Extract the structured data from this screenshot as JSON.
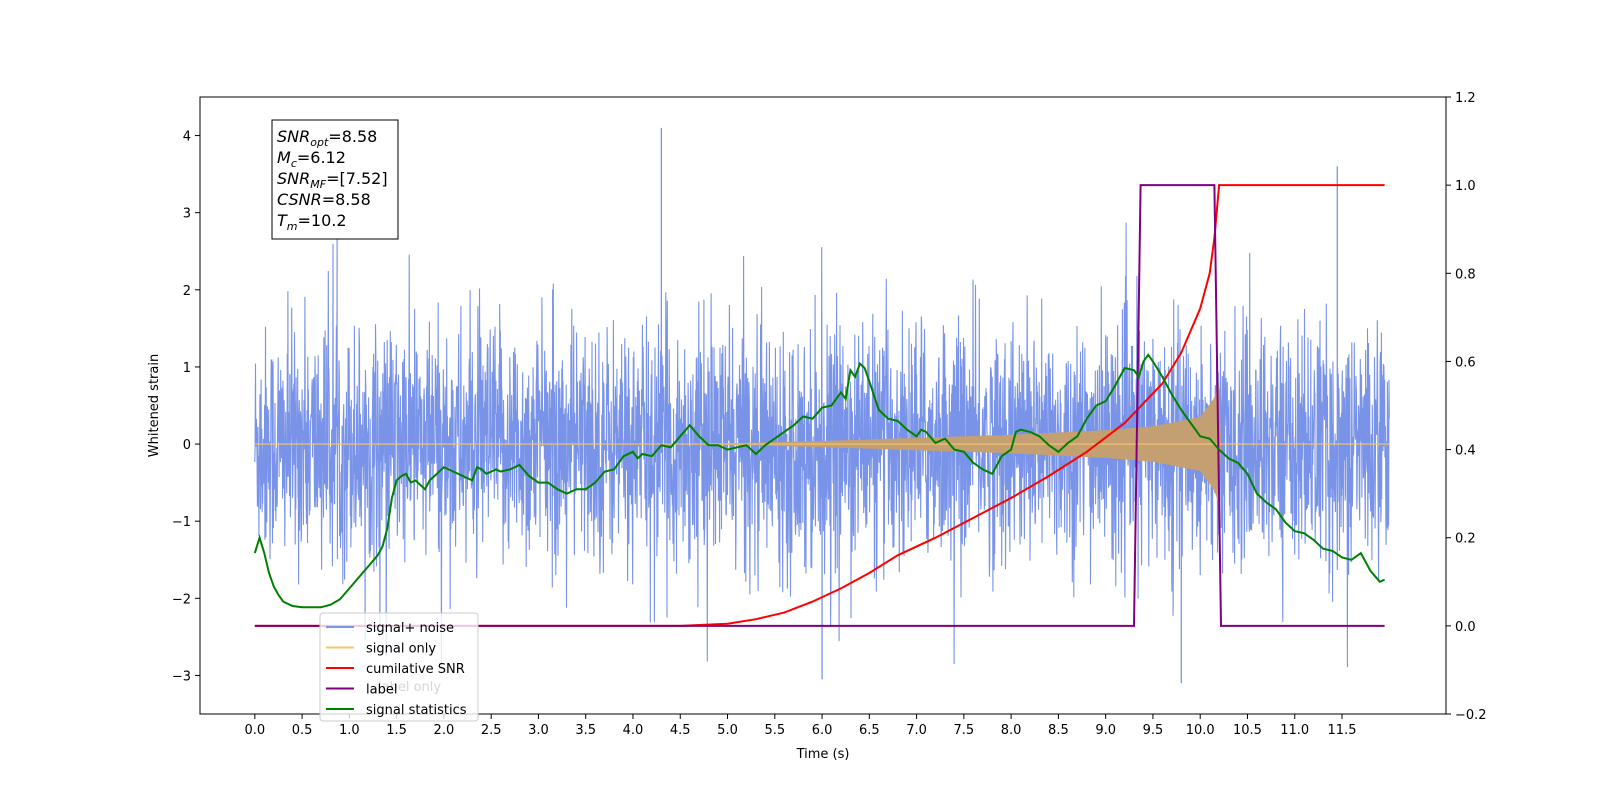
{
  "chart_data": {
    "type": "line",
    "title": "",
    "xlabel": "Time (s)",
    "ylabel": "Whitened strain",
    "y2label": "",
    "xlim": [
      -0.58,
      12.6
    ],
    "ylim": [
      -3.5,
      4.5
    ],
    "y2lim": [
      -0.2,
      1.2
    ],
    "xticks": [
      0.0,
      0.5,
      1.0,
      1.5,
      2.0,
      2.5,
      3.0,
      3.5,
      4.0,
      4.5,
      5.0,
      5.5,
      6.0,
      6.5,
      7.0,
      7.5,
      8.0,
      8.5,
      9.0,
      9.5,
      10.0,
      10.5,
      11.0,
      11.5
    ],
    "xtick_labels": [
      "0.0",
      "0.5",
      "1.0",
      "1.5",
      "2.0",
      "2.5",
      "3.0",
      "3.5",
      "4.0",
      "4.5",
      "5.0",
      "5.5",
      "6.0",
      "6.5",
      "7.0",
      "7.5",
      "8.0",
      "8.5",
      "9.0",
      "9.5",
      "10.0",
      "10.5",
      "11.0",
      "11.5"
    ],
    "yticks": [
      -3,
      -2,
      -1,
      0,
      1,
      2,
      3,
      4
    ],
    "ytick_labels": [
      "−3",
      "−2",
      "−1",
      "0",
      "1",
      "2",
      "3",
      "4"
    ],
    "y2ticks": [
      -0.2,
      0.0,
      0.2,
      0.4,
      0.6,
      0.8,
      1.0,
      1.2
    ],
    "y2tick_labels": [
      "−0.2",
      "0.0",
      "0.2",
      "0.4",
      "0.6",
      "0.8",
      "1.0",
      "1.2"
    ],
    "legend_position": "lower-left",
    "series": [
      {
        "name": "signal+ noise",
        "axis": "left",
        "color": "#7893e8",
        "style": "dense noise, amplitude about ±1.8 with spikes up to 4.1",
        "t_range": [
          0.0,
          12.0
        ],
        "peaks": [
          {
            "t": 4.3,
            "y": 4.1
          },
          {
            "t": 11.45,
            "y": 3.6
          },
          {
            "t": 6.0,
            "y": -3.05
          },
          {
            "t": 9.8,
            "y": -3.1
          }
        ]
      },
      {
        "name": "signal only",
        "axis": "left",
        "color": "#f5c66e",
        "fill_color": "#c49f72",
        "style": "chirp with growing envelope, merger at 10.2",
        "envelope": {
          "t": [
            5.0,
            6.0,
            7.0,
            8.0,
            9.0,
            9.5,
            10.0,
            10.15,
            10.2
          ],
          "amp": [
            0.01,
            0.04,
            0.08,
            0.12,
            0.18,
            0.23,
            0.35,
            0.6,
            0.8
          ]
        }
      },
      {
        "name": "cumilative SNR",
        "axis": "right",
        "color": "#ff0000",
        "x": [
          0.0,
          4.5,
          5.0,
          5.3,
          5.6,
          5.9,
          6.2,
          6.5,
          6.8,
          7.2,
          7.6,
          8.0,
          8.4,
          8.8,
          9.2,
          9.6,
          9.8,
          10.0,
          10.1,
          10.15,
          10.2,
          11.95
        ],
        "y": [
          0.0,
          0.0,
          0.005,
          0.015,
          0.03,
          0.055,
          0.085,
          0.12,
          0.16,
          0.2,
          0.245,
          0.29,
          0.34,
          0.395,
          0.46,
          0.55,
          0.62,
          0.72,
          0.8,
          0.88,
          1.0,
          1.0
        ]
      },
      {
        "name": "label",
        "axis": "right",
        "color": "#800080",
        "x": [
          0.0,
          9.3,
          9.37,
          10.15,
          10.22,
          11.95
        ],
        "y": [
          0.0,
          0.0,
          1.0,
          1.0,
          0.0,
          0.0
        ]
      },
      {
        "name": "signal statistics",
        "axis": "right",
        "color": "#008000",
        "x": [
          0.0,
          0.05,
          0.1,
          0.15,
          0.2,
          0.25,
          0.3,
          0.4,
          0.5,
          0.6,
          0.7,
          0.8,
          0.9,
          1.0,
          1.1,
          1.2,
          1.3,
          1.35,
          1.4,
          1.45,
          1.5,
          1.55,
          1.6,
          1.65,
          1.7,
          1.8,
          1.85,
          1.9,
          2.0,
          2.1,
          2.2,
          2.3,
          2.35,
          2.4,
          2.45,
          2.5,
          2.55,
          2.6,
          2.7,
          2.8,
          2.9,
          3.0,
          3.1,
          3.2,
          3.3,
          3.4,
          3.5,
          3.6,
          3.7,
          3.8,
          3.9,
          4.0,
          4.05,
          4.1,
          4.2,
          4.3,
          4.4,
          4.5,
          4.6,
          4.7,
          4.8,
          4.9,
          5.0,
          5.1,
          5.2,
          5.3,
          5.4,
          5.5,
          5.6,
          5.7,
          5.8,
          5.9,
          6.0,
          6.1,
          6.2,
          6.25,
          6.3,
          6.35,
          6.4,
          6.45,
          6.5,
          6.6,
          6.7,
          6.8,
          6.9,
          7.0,
          7.05,
          7.1,
          7.2,
          7.3,
          7.4,
          7.5,
          7.6,
          7.7,
          7.8,
          7.9,
          8.0,
          8.05,
          8.1,
          8.2,
          8.3,
          8.4,
          8.5,
          8.6,
          8.7,
          8.8,
          8.9,
          9.0,
          9.1,
          9.2,
          9.3,
          9.35,
          9.4,
          9.45,
          9.5,
          9.6,
          9.7,
          9.8,
          9.9,
          10.0,
          10.1,
          10.2,
          10.3,
          10.4,
          10.5,
          10.6,
          10.7,
          10.8,
          10.9,
          11.0,
          11.1,
          11.2,
          11.3,
          11.4,
          11.5,
          11.6,
          11.7,
          11.8,
          11.9,
          11.95
        ],
        "y": [
          0.165,
          0.2,
          0.165,
          0.12,
          0.09,
          0.07,
          0.055,
          0.045,
          0.042,
          0.042,
          0.042,
          0.048,
          0.06,
          0.085,
          0.11,
          0.135,
          0.16,
          0.18,
          0.22,
          0.29,
          0.33,
          0.34,
          0.345,
          0.325,
          0.33,
          0.31,
          0.33,
          0.34,
          0.36,
          0.35,
          0.34,
          0.33,
          0.36,
          0.355,
          0.345,
          0.35,
          0.355,
          0.35,
          0.355,
          0.365,
          0.34,
          0.325,
          0.325,
          0.31,
          0.3,
          0.31,
          0.31,
          0.325,
          0.35,
          0.355,
          0.385,
          0.395,
          0.38,
          0.39,
          0.385,
          0.41,
          0.405,
          0.43,
          0.455,
          0.43,
          0.41,
          0.41,
          0.4,
          0.405,
          0.41,
          0.39,
          0.41,
          0.425,
          0.44,
          0.455,
          0.475,
          0.47,
          0.495,
          0.5,
          0.53,
          0.515,
          0.58,
          0.565,
          0.595,
          0.585,
          0.555,
          0.49,
          0.47,
          0.465,
          0.445,
          0.43,
          0.445,
          0.44,
          0.415,
          0.425,
          0.4,
          0.395,
          0.37,
          0.355,
          0.345,
          0.385,
          0.4,
          0.44,
          0.445,
          0.44,
          0.43,
          0.41,
          0.395,
          0.415,
          0.43,
          0.47,
          0.5,
          0.51,
          0.545,
          0.585,
          0.58,
          0.565,
          0.6,
          0.615,
          0.6,
          0.565,
          0.525,
          0.49,
          0.46,
          0.43,
          0.425,
          0.4,
          0.38,
          0.37,
          0.345,
          0.3,
          0.28,
          0.265,
          0.235,
          0.215,
          0.21,
          0.195,
          0.175,
          0.17,
          0.155,
          0.15,
          0.165,
          0.125,
          0.1,
          0.105
        ]
      }
    ],
    "annotation_box": {
      "lines": [
        {
          "base": "SNR",
          "sub": "opt",
          "value": "=8.58"
        },
        {
          "base": "M",
          "sub": "c",
          "value": "=6.12"
        },
        {
          "base": "SNR",
          "sub": "MF",
          "value": "=[7.52]"
        },
        {
          "base": "CSNR",
          "sub": "",
          "value": "=8.58"
        },
        {
          "base": "T",
          "sub": "m",
          "value": "=10.2"
        }
      ]
    },
    "legend_overlap_text": "label only"
  }
}
